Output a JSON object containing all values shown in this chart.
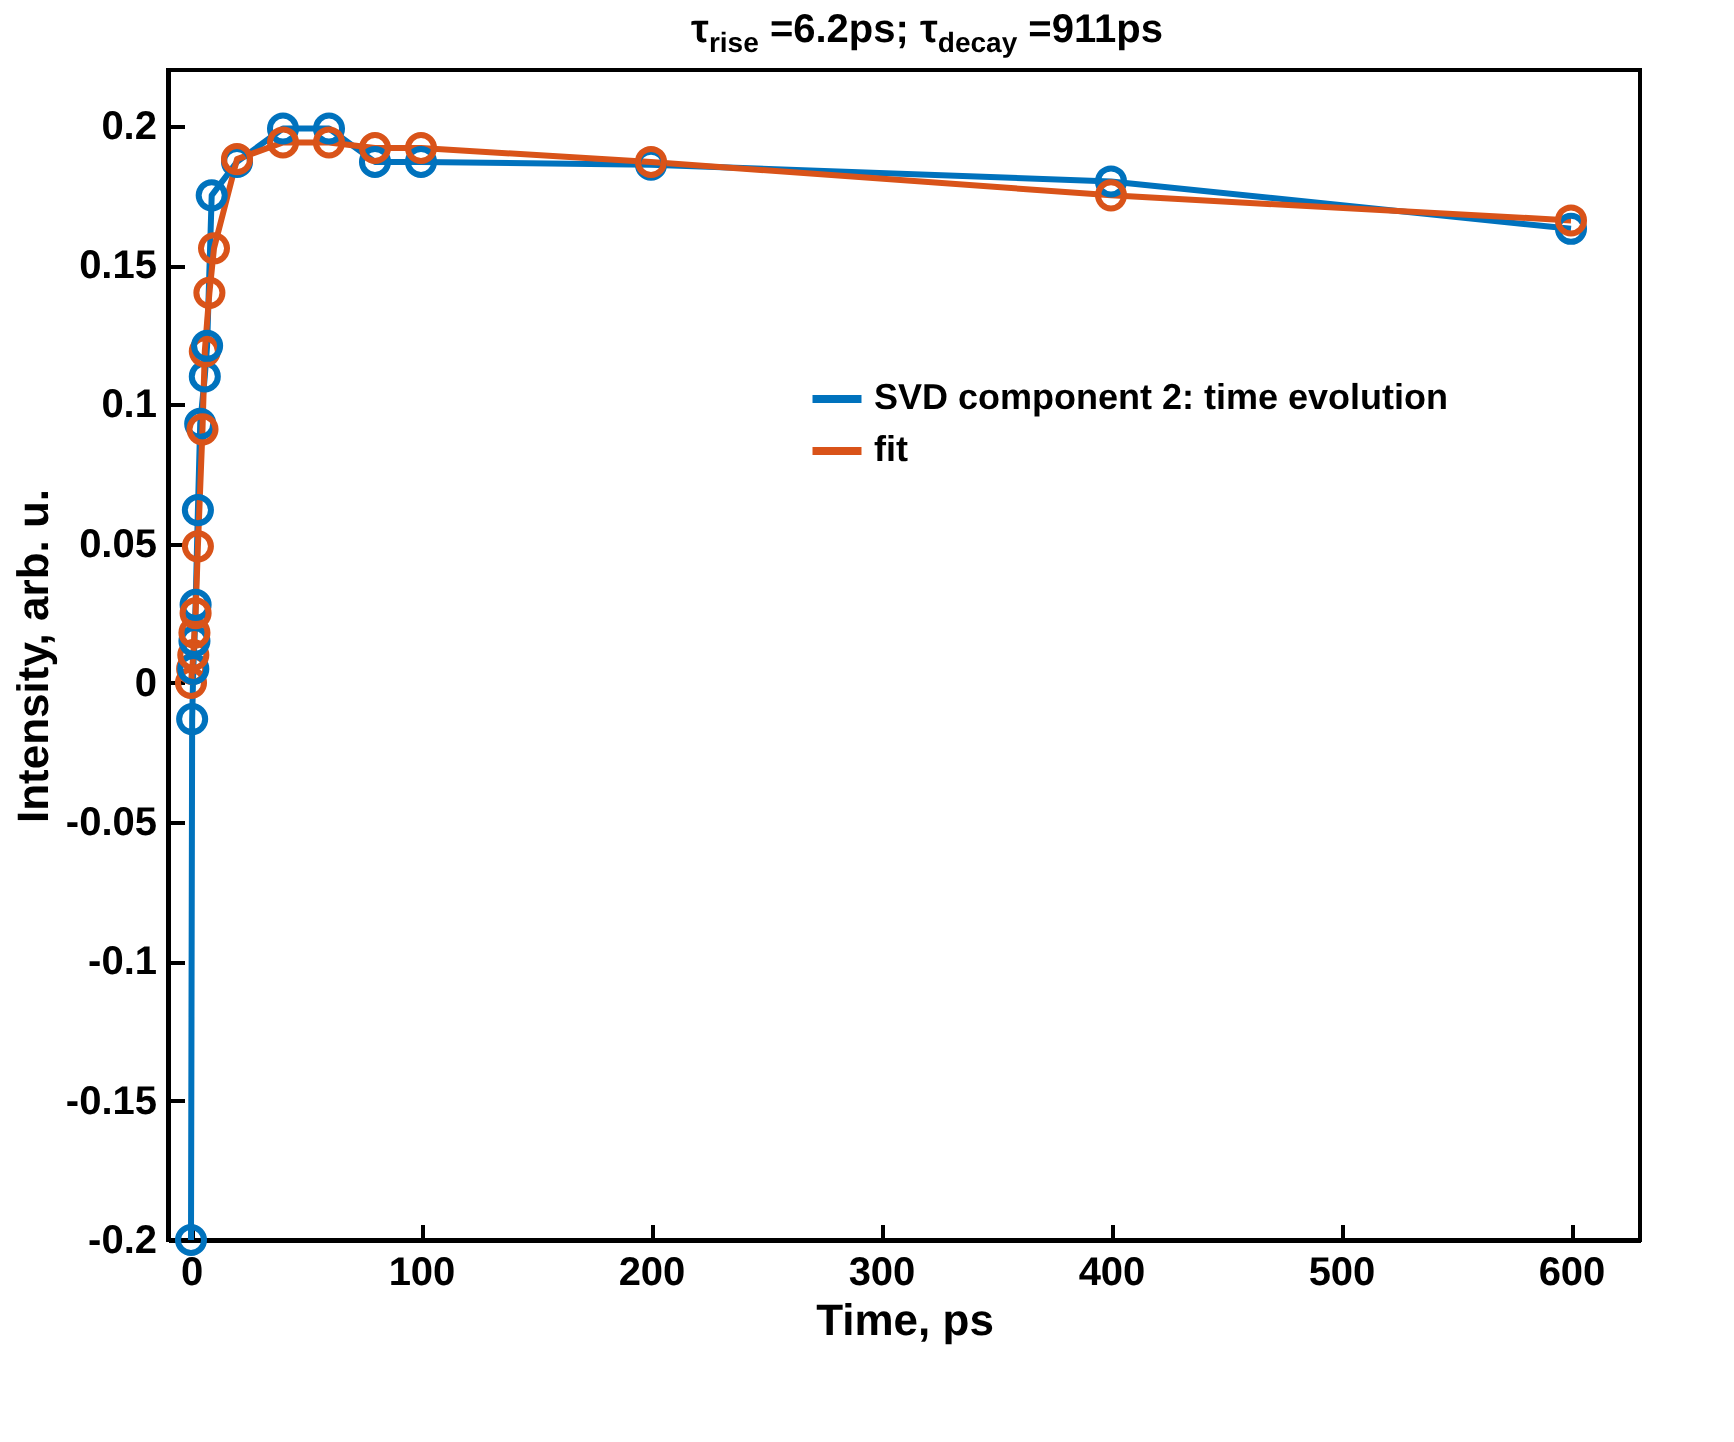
{
  "chart_data": {
    "type": "line",
    "title": "τ$_{rise}$ =6.2ps; τ$_{decay}$ =911ps",
    "xlabel": "Time, ps",
    "ylabel": "Intensity, arb. u.",
    "xlim": [
      -10,
      630
    ],
    "xticks": [
      0,
      100,
      200,
      300,
      400,
      500,
      600
    ],
    "ylim": [
      -0.2,
      0.22
    ],
    "yticks": [
      -0.2,
      -0.15,
      -0.1,
      -0.05,
      0,
      0.05,
      0.1,
      0.15,
      0.2
    ],
    "marker": "circle",
    "line_style": "solid",
    "legend": "top right",
    "grid": false,
    "series": [
      {
        "name": "SVD component 2: time evolution",
        "color": "#0072bd",
        "x": [
          0,
          0.5,
          1,
          1.5,
          2,
          3,
          4,
          6,
          7,
          9,
          20,
          40,
          60,
          80,
          100,
          200,
          400,
          600
        ],
        "values": [
          -0.2,
          -0.013,
          0.005,
          0.015,
          0.028,
          0.062,
          0.093,
          0.11,
          0.121,
          0.175,
          0.187,
          0.199,
          0.199,
          0.187,
          0.187,
          0.186,
          0.18,
          0.163
        ]
      },
      {
        "name": "fit",
        "color": "#d95319",
        "x": [
          0,
          0.5,
          1,
          1.5,
          2,
          3,
          5,
          6,
          8,
          10,
          20,
          40,
          60,
          80,
          100,
          200,
          400,
          600
        ],
        "values": [
          0,
          0.005,
          0.01,
          0.018,
          0.025,
          0.049,
          0.091,
          0.119,
          0.14,
          0.156,
          0.188,
          0.194,
          0.194,
          0.192,
          0.192,
          0.187,
          0.175,
          0.166
        ]
      }
    ]
  }
}
